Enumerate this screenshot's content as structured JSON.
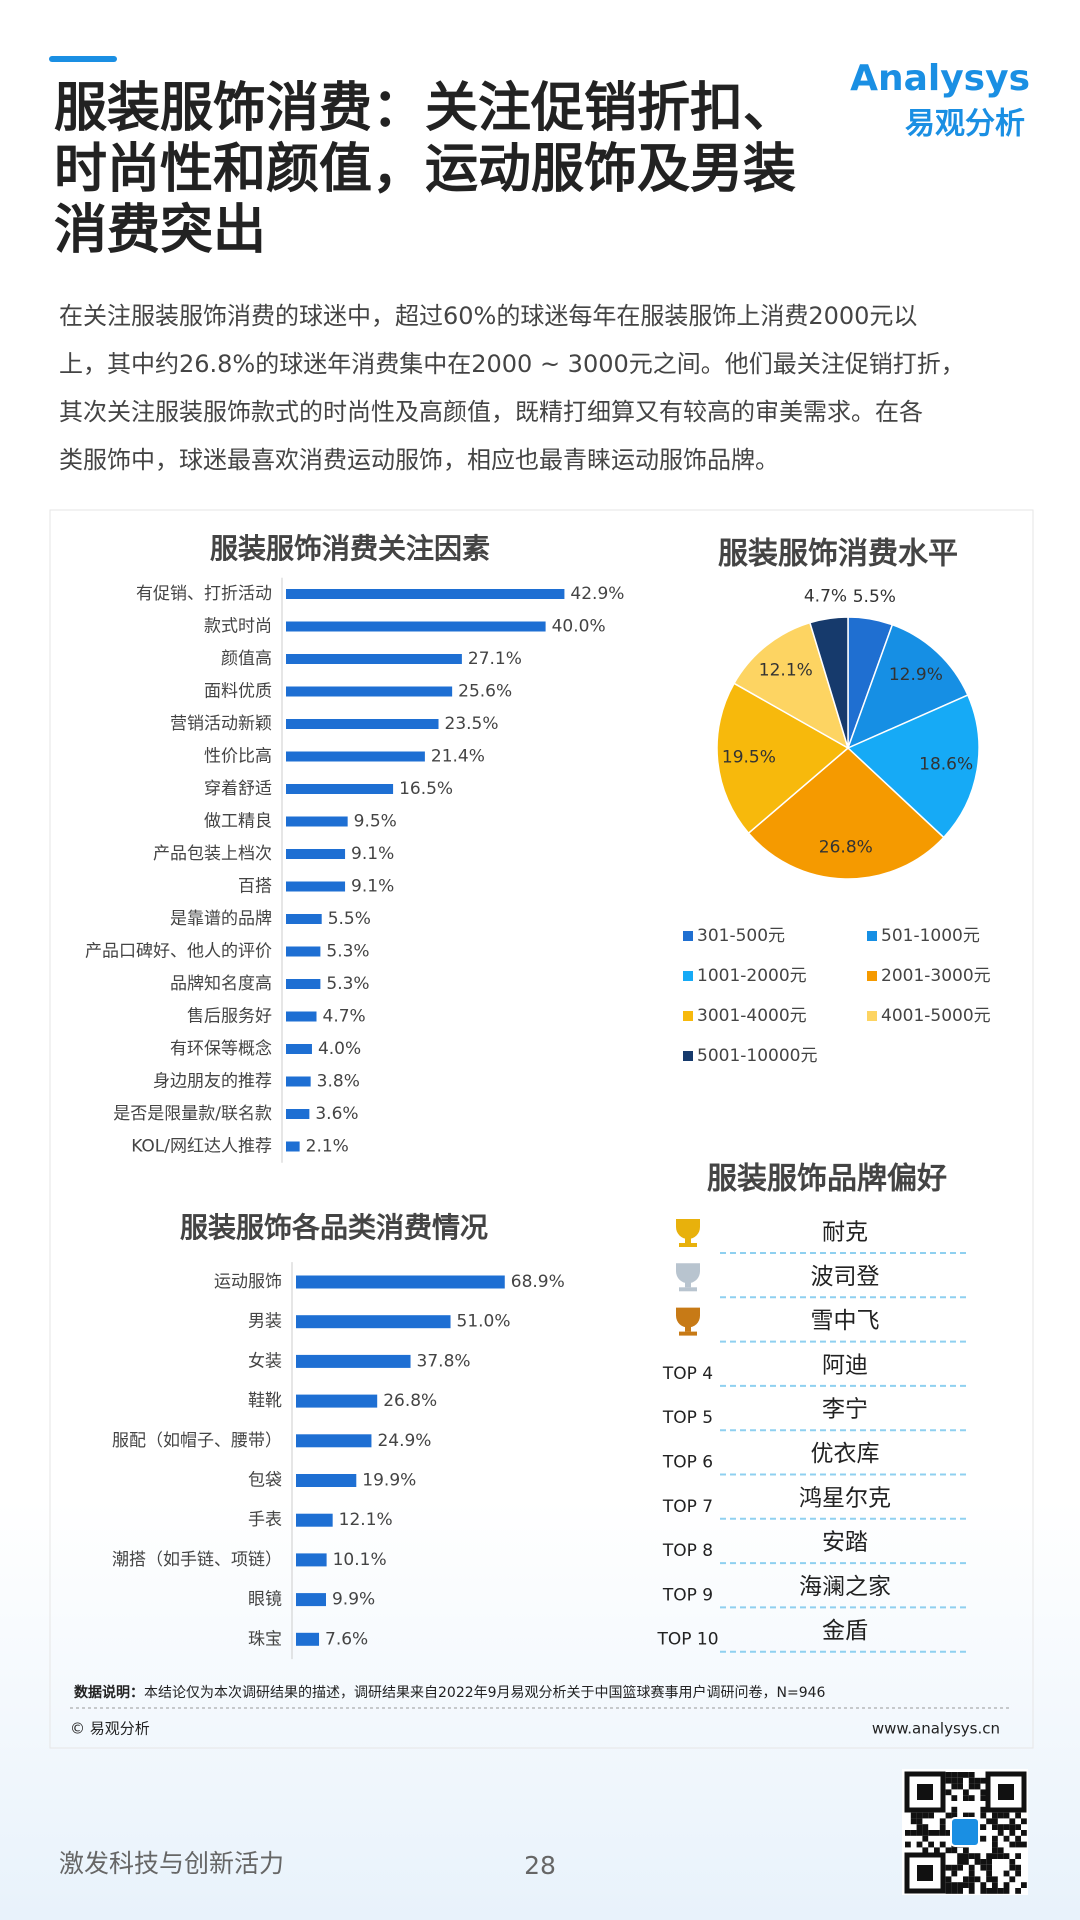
{
  "header": {
    "title_lines": [
      "服装服饰消费：关注促销折扣、",
      "时尚性和颜值，运动服饰及男装",
      "消费突出"
    ],
    "logo": "Analysys",
    "logo_cn": "易观分析"
  },
  "intro_lines": [
    "在关注服装服饰消费的球迷中，超过60%的球迷每年在服装服饰上消费2000元以",
    "上，其中约26.8%的球迷年消费集中在2000 ~ 3000元之间。他们最关注促销打折，",
    "其次关注服装服饰款式的时尚性及高颜值，既精打细算又有较高的审美需求。在各",
    "类服饰中，球迷最喜欢消费运动服饰，相应也最青睐运动服饰品牌。"
  ],
  "chart_data": [
    {
      "type": "bar",
      "orientation": "horizontal",
      "title": "服装服饰消费关注因素",
      "color": "#1e6fd3",
      "categories": [
        "有促销、打折活动",
        "款式时尚",
        "颜值高",
        "面料优质",
        "营销活动新颖",
        "性价比高",
        "穿着舒适",
        "做工精良",
        "产品包装上档次",
        "百搭",
        "是靠谱的品牌",
        "产品口碑好、他人的评价",
        "品牌知名度高",
        "售后服务好",
        "有环保等概念",
        "身边朋友的推荐",
        "是否是限量款/联名款",
        "KOL/网红达人推荐"
      ],
      "values": [
        42.9,
        40.0,
        27.1,
        25.6,
        23.5,
        21.4,
        16.5,
        9.5,
        9.1,
        9.1,
        5.5,
        5.3,
        5.3,
        4.7,
        4.0,
        3.8,
        3.6,
        2.1
      ],
      "value_labels": [
        "42.9%",
        "40.0%",
        "27.1%",
        "25.6%",
        "23.5%",
        "21.4%",
        "16.5%",
        "9.5%",
        "9.1%",
        "9.1%",
        "5.5%",
        "5.3%",
        "5.3%",
        "4.7%",
        "4.0%",
        "3.8%",
        "3.6%",
        "2.1%"
      ]
    },
    {
      "type": "pie",
      "title": "服装服饰消费水平",
      "categories": [
        "301-500元",
        "501-1000元",
        "1001-2000元",
        "2001-3000元",
        "3001-4000元",
        "4001-5000元",
        "5001-10000元"
      ],
      "values": [
        5.5,
        12.9,
        18.6,
        26.8,
        19.5,
        12.1,
        4.7
      ],
      "value_labels": [
        "5.5%",
        "12.9%",
        "18.6%",
        "26.8%",
        "19.5%",
        "12.1%",
        "4.7%"
      ],
      "colors": [
        "#1f6fd1",
        "#168fe4",
        "#16aaf6",
        "#f59a00",
        "#f7b90c",
        "#fdd462",
        "#163a6c"
      ]
    },
    {
      "type": "bar",
      "orientation": "horizontal",
      "title": "服装服饰各品类消费情况",
      "color": "#1e6fd3",
      "categories": [
        "运动服饰",
        "男装",
        "女装",
        "鞋靴",
        "服配（如帽子、腰带）",
        "包袋",
        "手表",
        "潮搭（如手链、项链）",
        "眼镜",
        "珠宝"
      ],
      "values": [
        68.9,
        51.0,
        37.8,
        26.8,
        24.9,
        19.9,
        12.1,
        10.1,
        9.9,
        7.6
      ],
      "value_labels": [
        "68.9%",
        "51.0%",
        "37.8%",
        "26.8%",
        "24.9%",
        "19.9%",
        "12.1%",
        "10.1%",
        "9.9%",
        "7.6%"
      ]
    }
  ],
  "brand_ranking": {
    "title": "服装服饰品牌偏好",
    "ranks": [
      null,
      null,
      null,
      "TOP 4",
      "TOP 5",
      "TOP 6",
      "TOP 7",
      "TOP 8",
      "TOP 9",
      "TOP 10"
    ],
    "brands": [
      "耐克",
      "波司登",
      "雪中飞",
      "阿迪",
      "李宁",
      "优衣库",
      "鸿星尔克",
      "安踏",
      "海澜之家",
      "金盾"
    ]
  },
  "footer": {
    "note_label": "数据说明：",
    "note": "本结论仅为本次调研结果的描述，调研结果来自2022年9月易观分析关于中国篮球赛事用户调研问卷，N=946",
    "copyright": "© 易观分析",
    "url": "www.analysys.cn",
    "slogan": "激发科技与创新活力",
    "page_number": 28
  }
}
